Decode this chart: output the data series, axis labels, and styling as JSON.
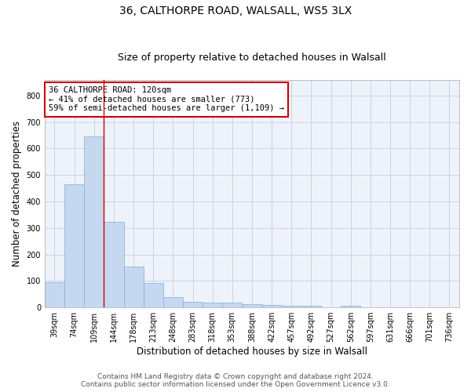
{
  "title1": "36, CALTHORPE ROAD, WALSALL, WS5 3LX",
  "title2": "Size of property relative to detached houses in Walsall",
  "xlabel": "Distribution of detached houses by size in Walsall",
  "ylabel": "Number of detached properties",
  "categories": [
    "39sqm",
    "74sqm",
    "109sqm",
    "144sqm",
    "178sqm",
    "213sqm",
    "248sqm",
    "283sqm",
    "318sqm",
    "353sqm",
    "388sqm",
    "422sqm",
    "457sqm",
    "492sqm",
    "527sqm",
    "562sqm",
    "597sqm",
    "631sqm",
    "666sqm",
    "701sqm",
    "736sqm"
  ],
  "values": [
    95,
    465,
    645,
    322,
    155,
    92,
    40,
    22,
    18,
    18,
    12,
    10,
    7,
    5,
    0,
    7,
    0,
    0,
    0,
    0,
    0
  ],
  "bar_color": "#c5d8f0",
  "bar_edge_color": "#7fafd4",
  "grid_color": "#c8d4e8",
  "background_color": "#eef2fa",
  "annotation_line1": "36 CALTHORPE ROAD: 120sqm",
  "annotation_line2": "← 41% of detached houses are smaller (773)",
  "annotation_line3": "59% of semi-detached houses are larger (1,109) →",
  "annotation_box_color": "#ffffff",
  "annotation_box_edge_color": "#cc0000",
  "red_line_x": 2.5,
  "ylim": [
    0,
    860
  ],
  "yticks": [
    0,
    100,
    200,
    300,
    400,
    500,
    600,
    700,
    800
  ],
  "footer1": "Contains HM Land Registry data © Crown copyright and database right 2024.",
  "footer2": "Contains public sector information licensed under the Open Government Licence v3.0.",
  "title1_fontsize": 10,
  "title2_fontsize": 9,
  "xlabel_fontsize": 8.5,
  "ylabel_fontsize": 8.5,
  "tick_fontsize": 7,
  "annotation_fontsize": 7.5,
  "footer_fontsize": 6.5
}
